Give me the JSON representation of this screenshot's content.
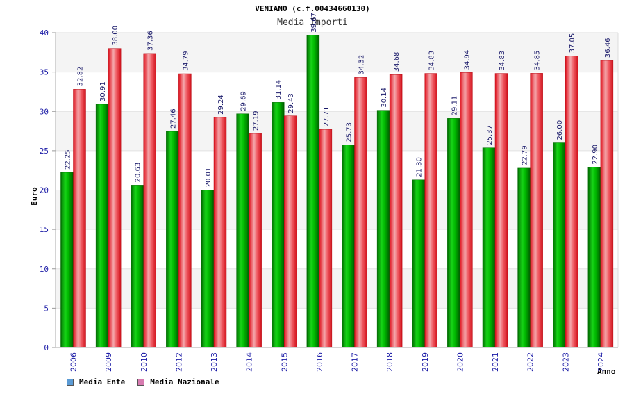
{
  "chart_data": {
    "type": "bar",
    "title": "VENIANO (c.f.00434660130)",
    "subtitle": "Media Importi",
    "xlabel": "Anno",
    "ylabel": "Euro",
    "ylim": [
      0,
      40
    ],
    "yticks": [
      0,
      5,
      10,
      15,
      20,
      25,
      30,
      35,
      40
    ],
    "grid": true,
    "legend_position": "bottom-left",
    "categories": [
      "2006",
      "2009",
      "2010",
      "2012",
      "2013",
      "2014",
      "2015",
      "2016",
      "2017",
      "2018",
      "2019",
      "2020",
      "2021",
      "2022",
      "2023",
      "2024"
    ],
    "series": [
      {
        "name": "Media Ente",
        "color": "#00b000",
        "legend_color": "#5b9bd5",
        "values": [
          22.25,
          30.91,
          20.63,
          27.46,
          20.01,
          29.69,
          31.14,
          39.67,
          25.73,
          30.14,
          21.3,
          29.11,
          25.37,
          22.79,
          26.0,
          22.9
        ],
        "labels": [
          "22.25",
          "30.91",
          "20.63",
          "27.46",
          "20.01",
          "29.69",
          "31.14",
          "39.67",
          "25.73",
          "30.14",
          "21.30",
          "29.11",
          "25.37",
          "22.79",
          "26.00",
          "22.90"
        ]
      },
      {
        "name": "Media Nazionale",
        "color": "#e8202a",
        "legend_color": "#d77bb0",
        "values": [
          32.82,
          38.0,
          37.36,
          34.79,
          29.24,
          27.19,
          29.43,
          27.71,
          34.32,
          34.68,
          34.83,
          34.94,
          34.83,
          34.85,
          37.05,
          36.46
        ],
        "labels": [
          "32.82",
          "38.00",
          "37.36",
          "34.79",
          "29.24",
          "27.19",
          "29.43",
          "27.71",
          "34.32",
          "34.68",
          "34.83",
          "34.94",
          "34.83",
          "34.85",
          "37.05",
          "36.46"
        ]
      }
    ]
  }
}
